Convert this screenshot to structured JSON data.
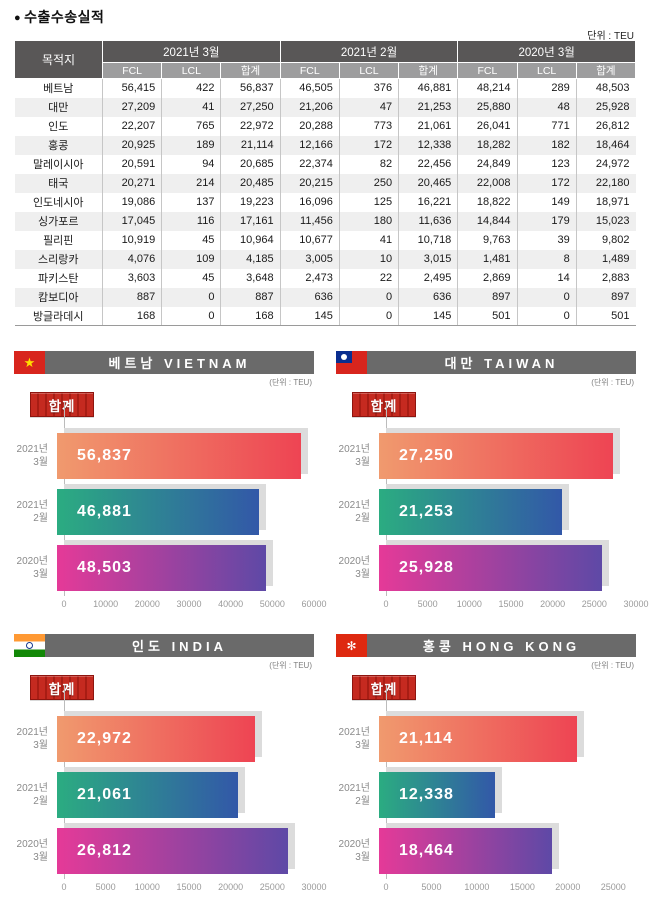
{
  "doc": {
    "bullet": "●",
    "title": "수출수송실적",
    "unit": "단위 : TEU"
  },
  "table": {
    "dest_header": "목적지",
    "groups": [
      "2021년 3월",
      "2021년 2월",
      "2020년 3월"
    ],
    "sub_headers": [
      "FCL",
      "LCL",
      "합계"
    ],
    "rows": [
      [
        "베트남",
        "56,415",
        "422",
        "56,837",
        "46,505",
        "376",
        "46,881",
        "48,214",
        "289",
        "48,503"
      ],
      [
        "대만",
        "27,209",
        "41",
        "27,250",
        "21,206",
        "47",
        "21,253",
        "25,880",
        "48",
        "25,928"
      ],
      [
        "인도",
        "22,207",
        "765",
        "22,972",
        "20,288",
        "773",
        "21,061",
        "26,041",
        "771",
        "26,812"
      ],
      [
        "홍콩",
        "20,925",
        "189",
        "21,114",
        "12,166",
        "172",
        "12,338",
        "18,282",
        "182",
        "18,464"
      ],
      [
        "말레이시아",
        "20,591",
        "94",
        "20,685",
        "22,374",
        "82",
        "22,456",
        "24,849",
        "123",
        "24,972"
      ],
      [
        "태국",
        "20,271",
        "214",
        "20,485",
        "20,215",
        "250",
        "20,465",
        "22,008",
        "172",
        "22,180"
      ],
      [
        "인도네시아",
        "19,086",
        "137",
        "19,223",
        "16,096",
        "125",
        "16,221",
        "18,822",
        "149",
        "18,971"
      ],
      [
        "싱가포르",
        "17,045",
        "116",
        "17,161",
        "11,456",
        "180",
        "11,636",
        "14,844",
        "179",
        "15,023"
      ],
      [
        "필리핀",
        "10,919",
        "45",
        "10,964",
        "10,677",
        "41",
        "10,718",
        "9,763",
        "39",
        "9,802"
      ],
      [
        "스리랑카",
        "4,076",
        "109",
        "4,185",
        "3,005",
        "10",
        "3,015",
        "1,481",
        "8",
        "1,489"
      ],
      [
        "파키스탄",
        "3,603",
        "45",
        "3,648",
        "2,473",
        "22",
        "2,495",
        "2,869",
        "14",
        "2,883"
      ],
      [
        "캄보디아",
        "887",
        "0",
        "887",
        "636",
        "0",
        "636",
        "897",
        "0",
        "897"
      ],
      [
        "방글라데시",
        "168",
        "0",
        "168",
        "145",
        "0",
        "145",
        "501",
        "0",
        "501"
      ]
    ]
  },
  "style": {
    "bar_gradients": [
      [
        "#F09A6E",
        "#EE4453"
      ],
      [
        "#2BAC81",
        "#3258A8"
      ],
      [
        "#E53A98",
        "#5E49A6"
      ]
    ],
    "header_bar_gray": "#6A6A6A",
    "table_header_dark": "#595757",
    "table_subheader_gray": "#9D9D9E",
    "stripe_gray": "#EFEFEF",
    "badge_red": "#C52A20",
    "shadow_gray": "#DCDCDC"
  },
  "chart_data": [
    {
      "type": "bar",
      "id": "vietnam",
      "title": "베트남 VIETNAM",
      "unit": "(단위 : TEU)",
      "legend": "합계",
      "flag_glyph": "★",
      "categories": [
        "2021년 3월",
        "2021년 2월",
        "2020년 3월"
      ],
      "values": [
        56837,
        46881,
        48503
      ],
      "value_labels": [
        "56,837",
        "46,881",
        "48,503"
      ],
      "xticks": [
        0,
        10000,
        20000,
        30000,
        40000,
        50000,
        60000
      ],
      "xlim": [
        0,
        60000
      ]
    },
    {
      "type": "bar",
      "id": "taiwan",
      "title": "대만 TAIWAN",
      "unit": "(단위 : TEU)",
      "legend": "합계",
      "flag_glyph": "",
      "categories": [
        "2021년 3월",
        "2021년 2월",
        "2020년 3월"
      ],
      "values": [
        27250,
        21253,
        25928
      ],
      "value_labels": [
        "27,250",
        "21,253",
        "25,928"
      ],
      "xticks": [
        0,
        5000,
        10000,
        15000,
        20000,
        25000,
        30000
      ],
      "xlim": [
        0,
        30000
      ]
    },
    {
      "type": "bar",
      "id": "india",
      "title": "인도 INDIA",
      "unit": "(단위 : TEU)",
      "legend": "합계",
      "flag_glyph": "",
      "categories": [
        "2021년 3월",
        "2021년 2월",
        "2020년 3월"
      ],
      "values": [
        22972,
        21061,
        26812
      ],
      "value_labels": [
        "22,972",
        "21,061",
        "26,812"
      ],
      "xticks": [
        0,
        5000,
        10000,
        15000,
        20000,
        25000,
        30000
      ],
      "xlim": [
        0,
        30000
      ]
    },
    {
      "type": "bar",
      "id": "hongkong",
      "title": "홍콩 HONG KONG",
      "unit": "(단위 : TEU)",
      "legend": "합계",
      "flag_glyph": "✻",
      "categories": [
        "2021년 3월",
        "2021년 2월",
        "2020년 3월"
      ],
      "values": [
        21114,
        12338,
        18464
      ],
      "value_labels": [
        "21,114",
        "12,338",
        "18,464"
      ],
      "xticks": [
        0,
        5000,
        10000,
        15000,
        20000,
        25000
      ],
      "xlim": [
        0,
        27500
      ]
    }
  ]
}
